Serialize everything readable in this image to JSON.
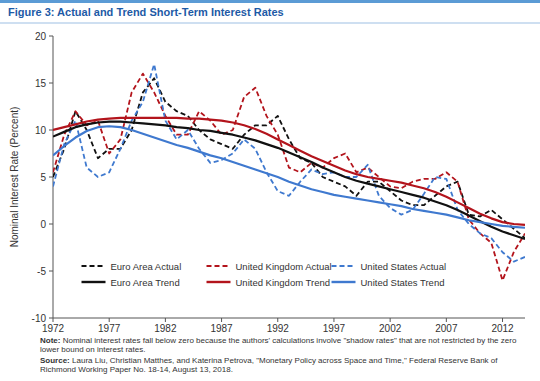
{
  "chart_data": {
    "type": "line",
    "title": "Figure 3: Actual and Trend Short-Term Interest Rates",
    "y_label": "Nominal Interest Rate (Percent)",
    "note_label": "Note:",
    "note": "Nominal interest rates fall below zero because the authors' calculations involve \"shadow rates\" that are not restricted by the zero lower bound on interest rates.",
    "source_label": "Source:",
    "source": "Laura Liu, Christian Matthes, and Katerina Petrova, \"Monetary Policy across Space and Time,\" Federal Reserve Bank of Richmond Working Paper No. 18-14, August 13, 2018.",
    "x": [
      1972,
      1973,
      1974,
      1975,
      1976,
      1977,
      1978,
      1979,
      1980,
      1981,
      1982,
      1983,
      1984,
      1985,
      1986,
      1987,
      1988,
      1989,
      1990,
      1991,
      1992,
      1993,
      1994,
      1995,
      1996,
      1997,
      1998,
      1999,
      2000,
      2001,
      2002,
      2003,
      2004,
      2005,
      2006,
      2007,
      2008,
      2009,
      2010,
      2011,
      2012,
      2013,
      2014
    ],
    "xlim": [
      1972,
      2014
    ],
    "xticks": [
      1972,
      1977,
      1982,
      1987,
      1992,
      1997,
      2002,
      2007,
      2012
    ],
    "ylim": [
      -10,
      20
    ],
    "yticks": [
      -10,
      -5,
      0,
      5,
      10,
      15,
      20
    ],
    "grid": false,
    "legend": "lower center",
    "series": [
      {
        "name": "Euro Area Actual",
        "color": "#111111",
        "line_style": "dashed",
        "values": [
          5,
          8,
          12,
          10,
          7,
          8,
          8,
          10,
          14,
          15.5,
          13,
          12,
          11.5,
          10,
          9,
          8.5,
          8,
          9.5,
          10.5,
          10.5,
          11.5,
          9,
          7,
          6.5,
          5,
          4.5,
          4,
          3,
          4.5,
          4.5,
          3.5,
          2.5,
          2,
          2,
          3,
          4,
          4.5,
          1,
          0.8,
          1.5,
          0.5,
          -0.5,
          -1.5
        ]
      },
      {
        "name": "United Kingdom Actual",
        "color": "#b3141c",
        "line_style": "dashed",
        "values": [
          5.5,
          9.5,
          12,
          10.5,
          11,
          7.5,
          9,
          14,
          16,
          14,
          11.5,
          9.5,
          9.5,
          12,
          11,
          9.5,
          10,
          13.5,
          14.5,
          11.5,
          9.5,
          6,
          5.5,
          6.5,
          6,
          7,
          7.5,
          5.5,
          6,
          5,
          4,
          3.8,
          4.5,
          4.8,
          4.8,
          5.5,
          4.5,
          0.5,
          -1,
          -2,
          -6,
          -3,
          -1
        ]
      },
      {
        "name": "United States Actual",
        "color": "#3f79cf",
        "line_style": "dashed",
        "values": [
          4,
          8.5,
          11,
          6,
          5,
          5.5,
          8,
          11,
          13,
          17,
          11,
          9,
          10,
          8,
          6.5,
          6.8,
          7.5,
          9,
          8,
          5.5,
          3.5,
          3,
          4.5,
          5.8,
          5.3,
          5.5,
          5,
          5,
          6.3,
          3,
          1.7,
          1,
          1.5,
          3.2,
          5,
          4.8,
          1.5,
          0,
          -1,
          -1.5,
          -3,
          -4,
          -3.5
        ]
      },
      {
        "name": "Euro Area Trend",
        "color": "#111111",
        "line_style": "solid",
        "values": [
          9.3,
          9.8,
          10.3,
          10.6,
          10.8,
          10.9,
          10.9,
          10.8,
          10.7,
          10.6,
          10.5,
          10.3,
          10.2,
          10,
          9.9,
          9.7,
          9.5,
          9.2,
          8.9,
          8.5,
          8.1,
          7.6,
          7.1,
          6.6,
          6,
          5.5,
          5,
          4.6,
          4.3,
          4,
          3.7,
          3.4,
          3.1,
          2.8,
          2.4,
          2,
          1.5,
          0.9,
          0.3,
          -0.3,
          -0.8,
          -1.2,
          -1.6
        ]
      },
      {
        "name": "United Kingdom Trend",
        "color": "#b3141c",
        "line_style": "solid",
        "values": [
          10,
          10.3,
          10.6,
          10.9,
          11.1,
          11.2,
          11.3,
          11.3,
          11.3,
          11.3,
          11.3,
          11.3,
          11.2,
          11.2,
          11.1,
          11,
          10.8,
          10.5,
          10.1,
          9.6,
          9,
          8.4,
          7.8,
          7.2,
          6.7,
          6.2,
          5.7,
          5.3,
          5,
          4.8,
          4.6,
          4.4,
          4.1,
          3.8,
          3.4,
          2.9,
          2.3,
          1.7,
          1.1,
          0.6,
          0.2,
          0,
          -0.1
        ]
      },
      {
        "name": "United States Trend",
        "color": "#3f79cf",
        "line_style": "solid",
        "values": [
          7.3,
          8.3,
          9.2,
          9.9,
          10.3,
          10.4,
          10.3,
          10,
          9.6,
          9.2,
          8.8,
          8.4,
          8.1,
          7.7,
          7.3,
          7,
          6.6,
          6.2,
          5.8,
          5.4,
          5,
          4.5,
          4.1,
          3.7,
          3.4,
          3.1,
          2.9,
          2.7,
          2.5,
          2.3,
          2.1,
          1.9,
          1.6,
          1.4,
          1.2,
          1,
          0.7,
          0.4,
          0.2,
          0,
          -0.2,
          -0.3,
          -0.4
        ]
      }
    ]
  }
}
